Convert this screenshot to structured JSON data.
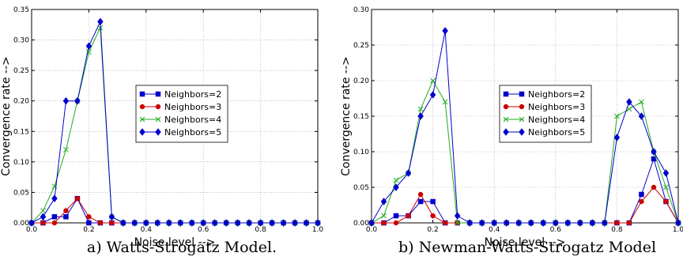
{
  "colors": {
    "neighbors_2": "#0000cc",
    "neighbors_3": "#cc0000",
    "neighbors_4": "#22aa22",
    "neighbors_5": "#0000cc",
    "axes": "#000000",
    "grid": "#999999"
  },
  "markers": {
    "neighbors_2": "square",
    "neighbors_3": "circle",
    "neighbors_4": "x",
    "neighbors_5": "diamond"
  },
  "captions": {
    "a": "a) Watts-Strogatz Model.",
    "b": "b) Newman-Watts-Strogatz Model"
  },
  "chart_data": [
    {
      "type": "line",
      "xlabel": "Noise level -->",
      "ylabel": "Convergence rate -->",
      "xlim": [
        0,
        1.0
      ],
      "ylim": [
        0,
        0.35
      ],
      "xticks": [
        0.0,
        0.2,
        0.4,
        0.6,
        0.8,
        1.0
      ],
      "yticks": [
        0.0,
        0.05,
        0.1,
        0.15,
        0.2,
        0.25,
        0.3,
        0.35
      ],
      "xtick_labels": [
        "0.0",
        "0.2",
        "0.4",
        "0.6",
        "0.8",
        "1.0"
      ],
      "ytick_labels": [
        "0.00",
        "0.05",
        "0.10",
        "0.15",
        "0.20",
        "0.25",
        "0.30",
        "0.35"
      ],
      "grid": true,
      "legend": "center-right",
      "x": [
        0,
        0.04,
        0.08,
        0.12,
        0.16,
        0.2,
        0.24,
        0.28,
        0.32,
        0.36,
        0.4,
        0.44,
        0.48,
        0.52,
        0.56,
        0.6,
        0.64,
        0.68,
        0.72,
        0.76,
        0.8,
        0.84,
        0.88,
        0.92,
        0.96,
        1.0
      ],
      "series": [
        {
          "name": "Neighbors=2",
          "values": [
            0,
            0,
            0.01,
            0.01,
            0.04,
            0.0,
            0.0,
            0.0,
            0,
            0,
            0,
            0,
            0,
            0,
            0,
            0,
            0,
            0,
            0,
            0,
            0,
            0,
            0,
            0,
            0,
            0
          ]
        },
        {
          "name": "Neighbors=3",
          "values": [
            0,
            0,
            0,
            0.02,
            0.04,
            0.01,
            0.0,
            0.0,
            0,
            0,
            0,
            0,
            0,
            0,
            0,
            0,
            0,
            0,
            0,
            0,
            0,
            0,
            0,
            0,
            0,
            0
          ]
        },
        {
          "name": "Neighbors=4",
          "values": [
            0,
            0.02,
            0.06,
            0.12,
            0.2,
            0.28,
            0.32,
            0.01,
            0,
            0,
            0,
            0,
            0,
            0,
            0,
            0,
            0,
            0,
            0,
            0,
            0,
            0,
            0,
            0,
            0,
            0
          ]
        },
        {
          "name": "Neighbors=5",
          "values": [
            0,
            0.01,
            0.04,
            0.2,
            0.2,
            0.29,
            0.33,
            0.01,
            0,
            0,
            0,
            0,
            0,
            0,
            0,
            0,
            0,
            0,
            0,
            0,
            0,
            0,
            0,
            0,
            0,
            0
          ]
        }
      ]
    },
    {
      "type": "line",
      "xlabel": "Noise level -->",
      "ylabel": "Convergence rate -->",
      "xlim": [
        0,
        1.0
      ],
      "ylim": [
        0,
        0.3
      ],
      "xticks": [
        0.0,
        0.2,
        0.4,
        0.6,
        0.8,
        1.0
      ],
      "yticks": [
        0.0,
        0.05,
        0.1,
        0.15,
        0.2,
        0.25,
        0.3
      ],
      "xtick_labels": [
        "0.0",
        "0.2",
        "0.4",
        "0.6",
        "0.8",
        "1.0"
      ],
      "ytick_labels": [
        "0.00",
        "0.05",
        "0.10",
        "0.15",
        "0.20",
        "0.25",
        "0.30"
      ],
      "grid": true,
      "legend": "center-right",
      "x": [
        0,
        0.04,
        0.08,
        0.12,
        0.16,
        0.2,
        0.24,
        0.28,
        0.32,
        0.36,
        0.4,
        0.44,
        0.48,
        0.52,
        0.56,
        0.6,
        0.64,
        0.68,
        0.72,
        0.76,
        0.8,
        0.84,
        0.88,
        0.92,
        0.96,
        1.0
      ],
      "series": [
        {
          "name": "Neighbors=2",
          "values": [
            0,
            0,
            0.01,
            0.01,
            0.03,
            0.03,
            0.0,
            0.0,
            0,
            0,
            0,
            0,
            0,
            0,
            0,
            0,
            0,
            0,
            0,
            0,
            0,
            0,
            0.04,
            0.09,
            0.03,
            0
          ]
        },
        {
          "name": "Neighbors=3",
          "values": [
            0,
            0,
            0,
            0.01,
            0.04,
            0.01,
            0.0,
            0.0,
            0,
            0,
            0,
            0,
            0,
            0,
            0,
            0,
            0,
            0,
            0,
            0,
            0,
            0,
            0.03,
            0.05,
            0.03,
            0
          ]
        },
        {
          "name": "Neighbors=4",
          "values": [
            0,
            0.01,
            0.06,
            0.07,
            0.16,
            0.2,
            0.17,
            0.0,
            0,
            0,
            0,
            0,
            0,
            0,
            0,
            0,
            0,
            0,
            0,
            0,
            0.15,
            0.16,
            0.17,
            0.1,
            0.05,
            0
          ]
        },
        {
          "name": "Neighbors=5",
          "values": [
            0,
            0.03,
            0.05,
            0.07,
            0.15,
            0.18,
            0.27,
            0.01,
            0,
            0,
            0,
            0,
            0,
            0,
            0,
            0,
            0,
            0,
            0,
            0,
            0.12,
            0.17,
            0.15,
            0.1,
            0.07,
            0
          ]
        }
      ]
    }
  ]
}
